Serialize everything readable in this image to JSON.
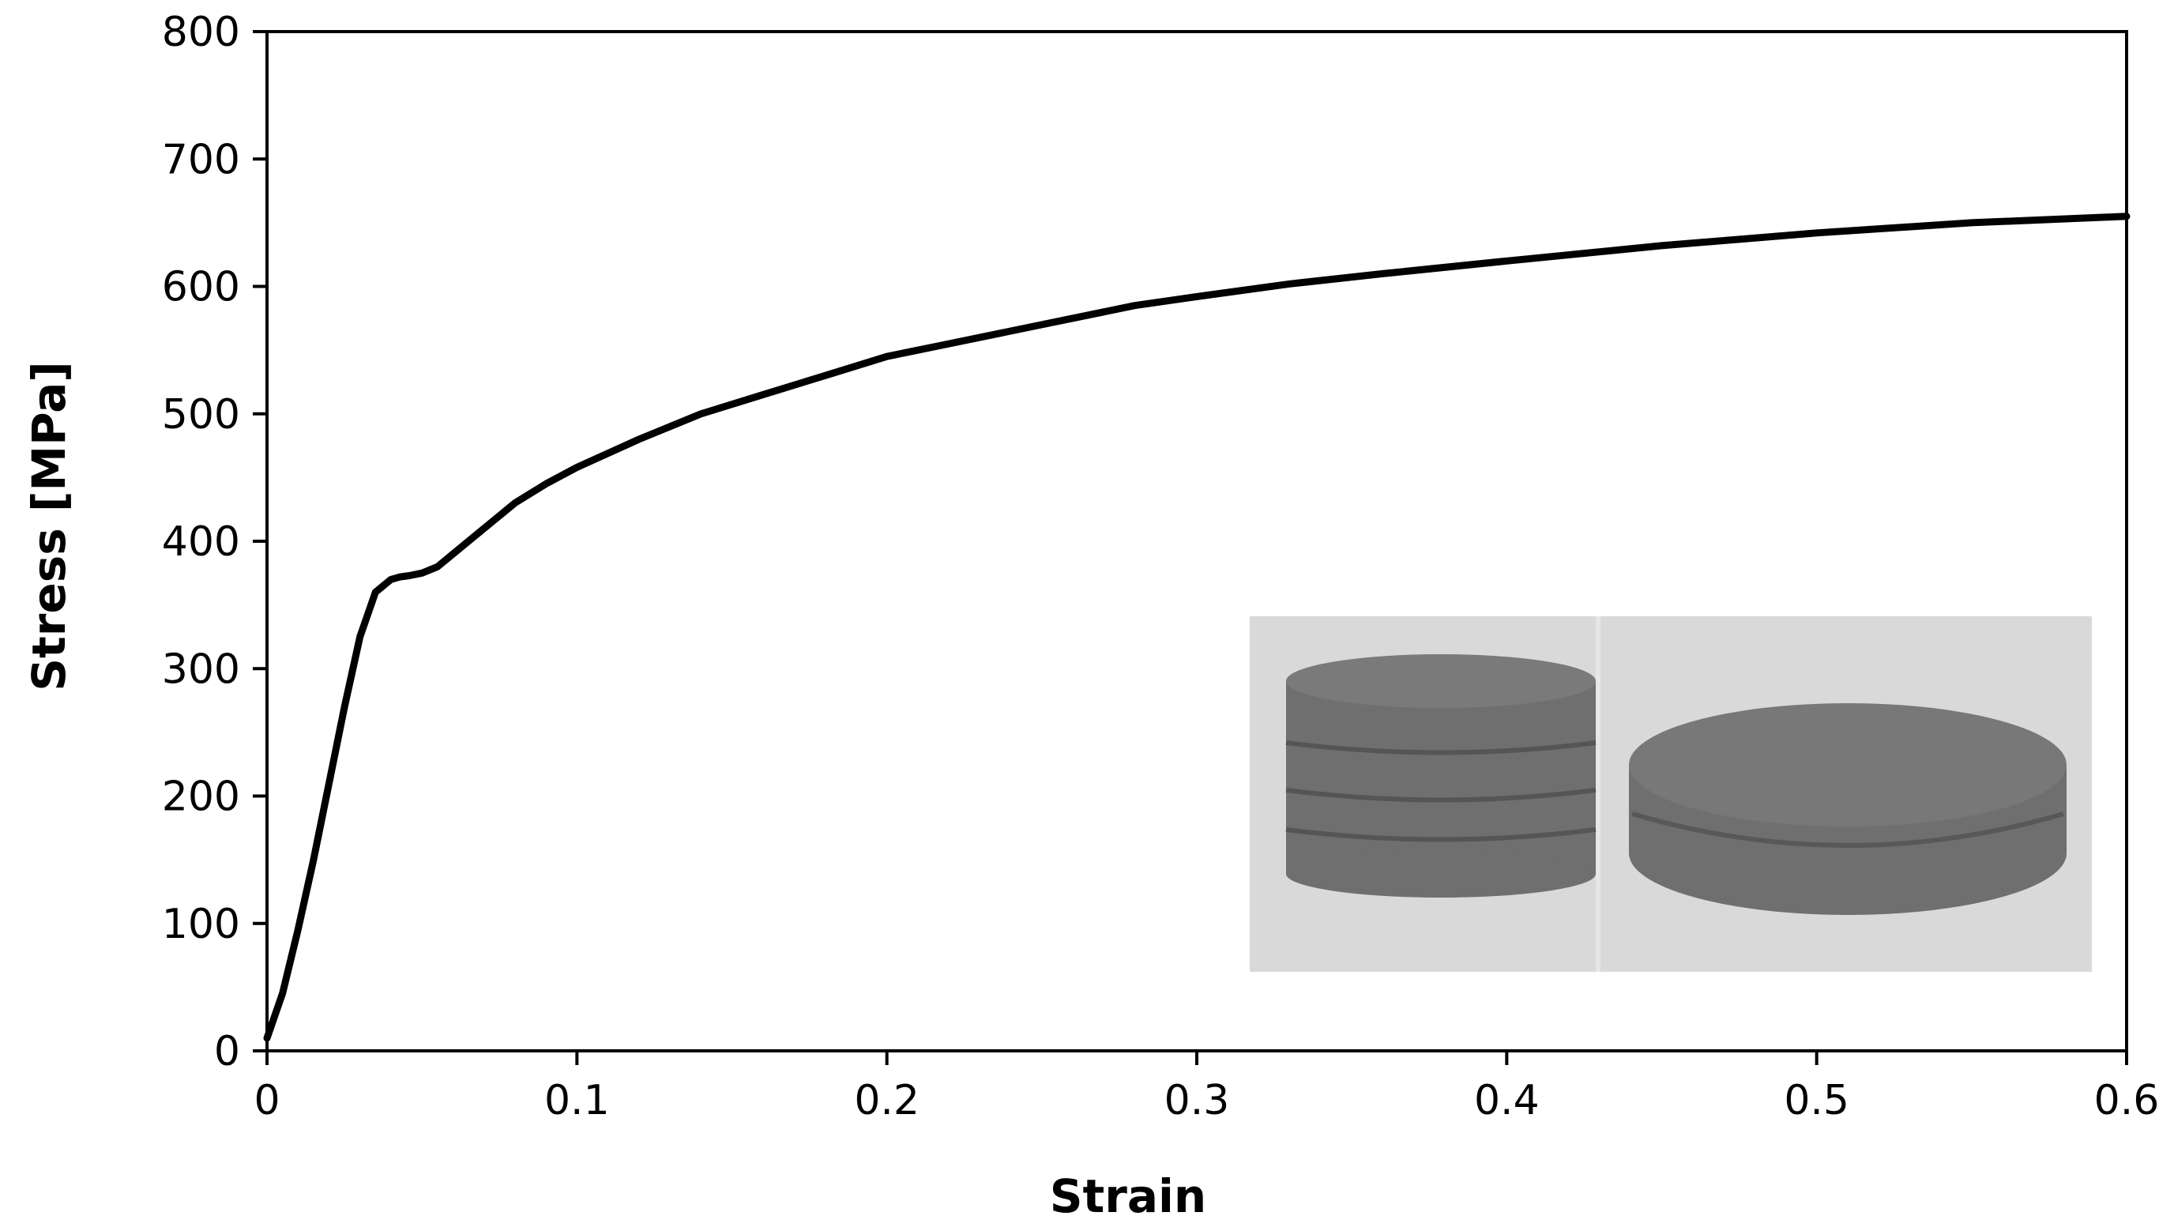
{
  "chart_data": {
    "type": "line",
    "xlabel": "Strain",
    "ylabel": "Stress [MPa]",
    "xlim": [
      0,
      0.6
    ],
    "ylim": [
      0,
      800
    ],
    "x_ticks": [
      "0",
      "0.1",
      "0.2",
      "0.3",
      "0.4",
      "0.5",
      "0.6"
    ],
    "y_ticks": [
      "0",
      "100",
      "200",
      "300",
      "400",
      "500",
      "600",
      "700",
      "800"
    ],
    "x_tick_values": [
      0,
      0.1,
      0.2,
      0.3,
      0.4,
      0.5,
      0.6
    ],
    "y_tick_values": [
      0,
      100,
      200,
      300,
      400,
      500,
      600,
      700,
      800
    ],
    "grid": false,
    "legend": "none",
    "line_color": "#000000",
    "series": [
      {
        "x": [
          0,
          0.005,
          0.01,
          0.015,
          0.02,
          0.025,
          0.03,
          0.035,
          0.04,
          0.043,
          0.046,
          0.05,
          0.055,
          0.06,
          0.07,
          0.08,
          0.09,
          0.1,
          0.12,
          0.14,
          0.16,
          0.18,
          0.2,
          0.22,
          0.25,
          0.28,
          0.3,
          0.33,
          0.36,
          0.4,
          0.45,
          0.5,
          0.55,
          0.6
        ],
        "y": [
          10,
          45,
          95,
          150,
          210,
          270,
          325,
          360,
          370,
          372,
          373,
          375,
          380,
          390,
          410,
          430,
          445,
          458,
          480,
          500,
          515,
          530,
          545,
          555,
          570,
          585,
          592,
          602,
          610,
          620,
          632,
          642,
          650,
          655
        ]
      }
    ],
    "inset": {
      "type": "photo",
      "content": "two cylindrical specimens: undeformed (left) and compressed (right)",
      "bg_color": "#d9d9d9",
      "specimen_color": "#6e6e6e"
    }
  }
}
